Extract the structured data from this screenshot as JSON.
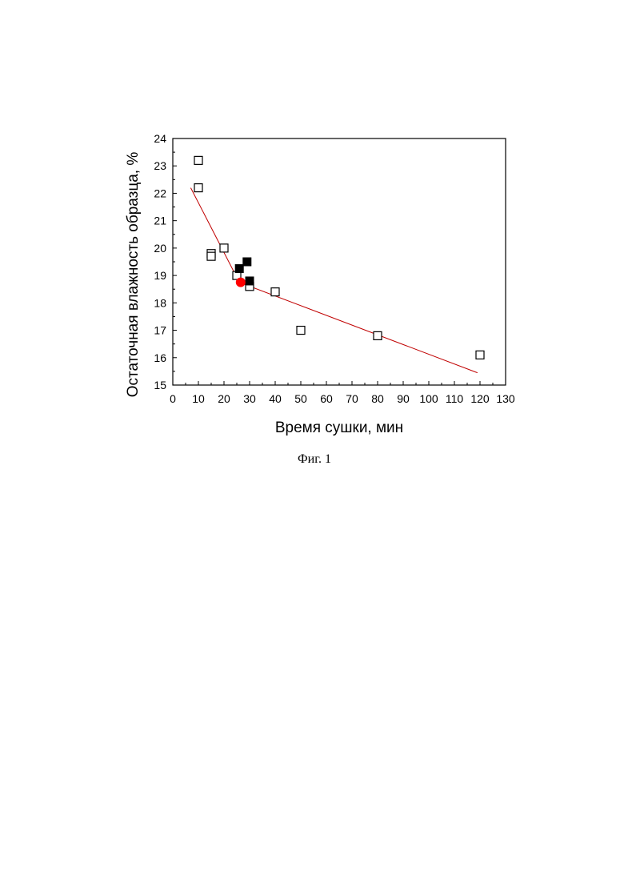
{
  "chart_data": {
    "type": "scatter",
    "title": "",
    "xlabel": "Время сушки, мин",
    "ylabel": "Остаточная влажность образца, %",
    "xlim": [
      0,
      130
    ],
    "ylim": [
      15,
      24
    ],
    "xticks": [
      0,
      10,
      20,
      30,
      40,
      50,
      60,
      70,
      80,
      90,
      100,
      110,
      120,
      130
    ],
    "yticks": [
      15,
      16,
      17,
      18,
      19,
      20,
      21,
      22,
      23,
      24
    ],
    "grid": false,
    "legend": "none",
    "series": [
      {
        "marker": "open-square",
        "color": "#000000",
        "points": [
          {
            "x": 10,
            "y": 23.2
          },
          {
            "x": 10,
            "y": 22.2
          },
          {
            "x": 15,
            "y": 19.8
          },
          {
            "x": 15,
            "y": 19.7
          },
          {
            "x": 20,
            "y": 20.0
          },
          {
            "x": 25,
            "y": 19.0
          },
          {
            "x": 30,
            "y": 18.6
          },
          {
            "x": 40,
            "y": 18.4
          },
          {
            "x": 50,
            "y": 17.0
          },
          {
            "x": 80,
            "y": 16.8
          },
          {
            "x": 120,
            "y": 16.1
          }
        ]
      },
      {
        "marker": "filled-square",
        "color": "#000000",
        "points": [
          {
            "x": 26,
            "y": 19.25
          },
          {
            "x": 29,
            "y": 19.5
          },
          {
            "x": 30,
            "y": 18.8
          }
        ]
      },
      {
        "marker": "filled-circle",
        "color": "#ff0000",
        "points": [
          {
            "x": 26.5,
            "y": 18.75
          }
        ]
      }
    ],
    "fit_line": {
      "color": "#c00000",
      "points": [
        {
          "x": 7,
          "y": 22.2
        },
        {
          "x": 26,
          "y": 18.75
        },
        {
          "x": 119,
          "y": 15.45
        }
      ]
    }
  },
  "caption": "Фиг. 1"
}
